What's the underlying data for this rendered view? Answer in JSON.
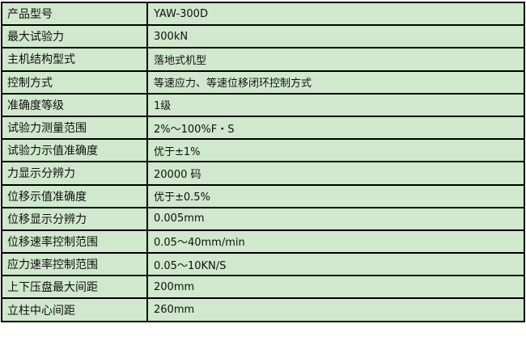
{
  "rows": [
    {
      "label": "产品型号",
      "value": "YAW-300D"
    },
    {
      "label": "最大试验力",
      "value": "300kN"
    },
    {
      "label": "主机结构型式",
      "value": "落地式机型"
    },
    {
      "label": "控制方式",
      "value": "等速应力、等速位移闭环控制方式"
    },
    {
      "label": "准确度等级",
      "value": "1级"
    },
    {
      "label": "试验力测量范围",
      "value": "2%～100%F・S"
    },
    {
      "label": "试验力示值准确度",
      "value": "优于±1%"
    },
    {
      "label": "力显示分辨力",
      "value": "20000 码"
    },
    {
      "label": "位移示值准确度",
      "value": "优于±0.5%"
    },
    {
      "label": "位移显示分辨力",
      "value": "0.005mm"
    },
    {
      "label": "位移速率控制范围",
      "value": "0.05～40mm/min"
    },
    {
      "label": "应力速率控制范围",
      "value": "0.05～10KN/S"
    },
    {
      "label": "上下压盘最大间距",
      "value": "200mm"
    },
    {
      "label": "立柱中心间距",
      "value": "260mm"
    }
  ]
}
